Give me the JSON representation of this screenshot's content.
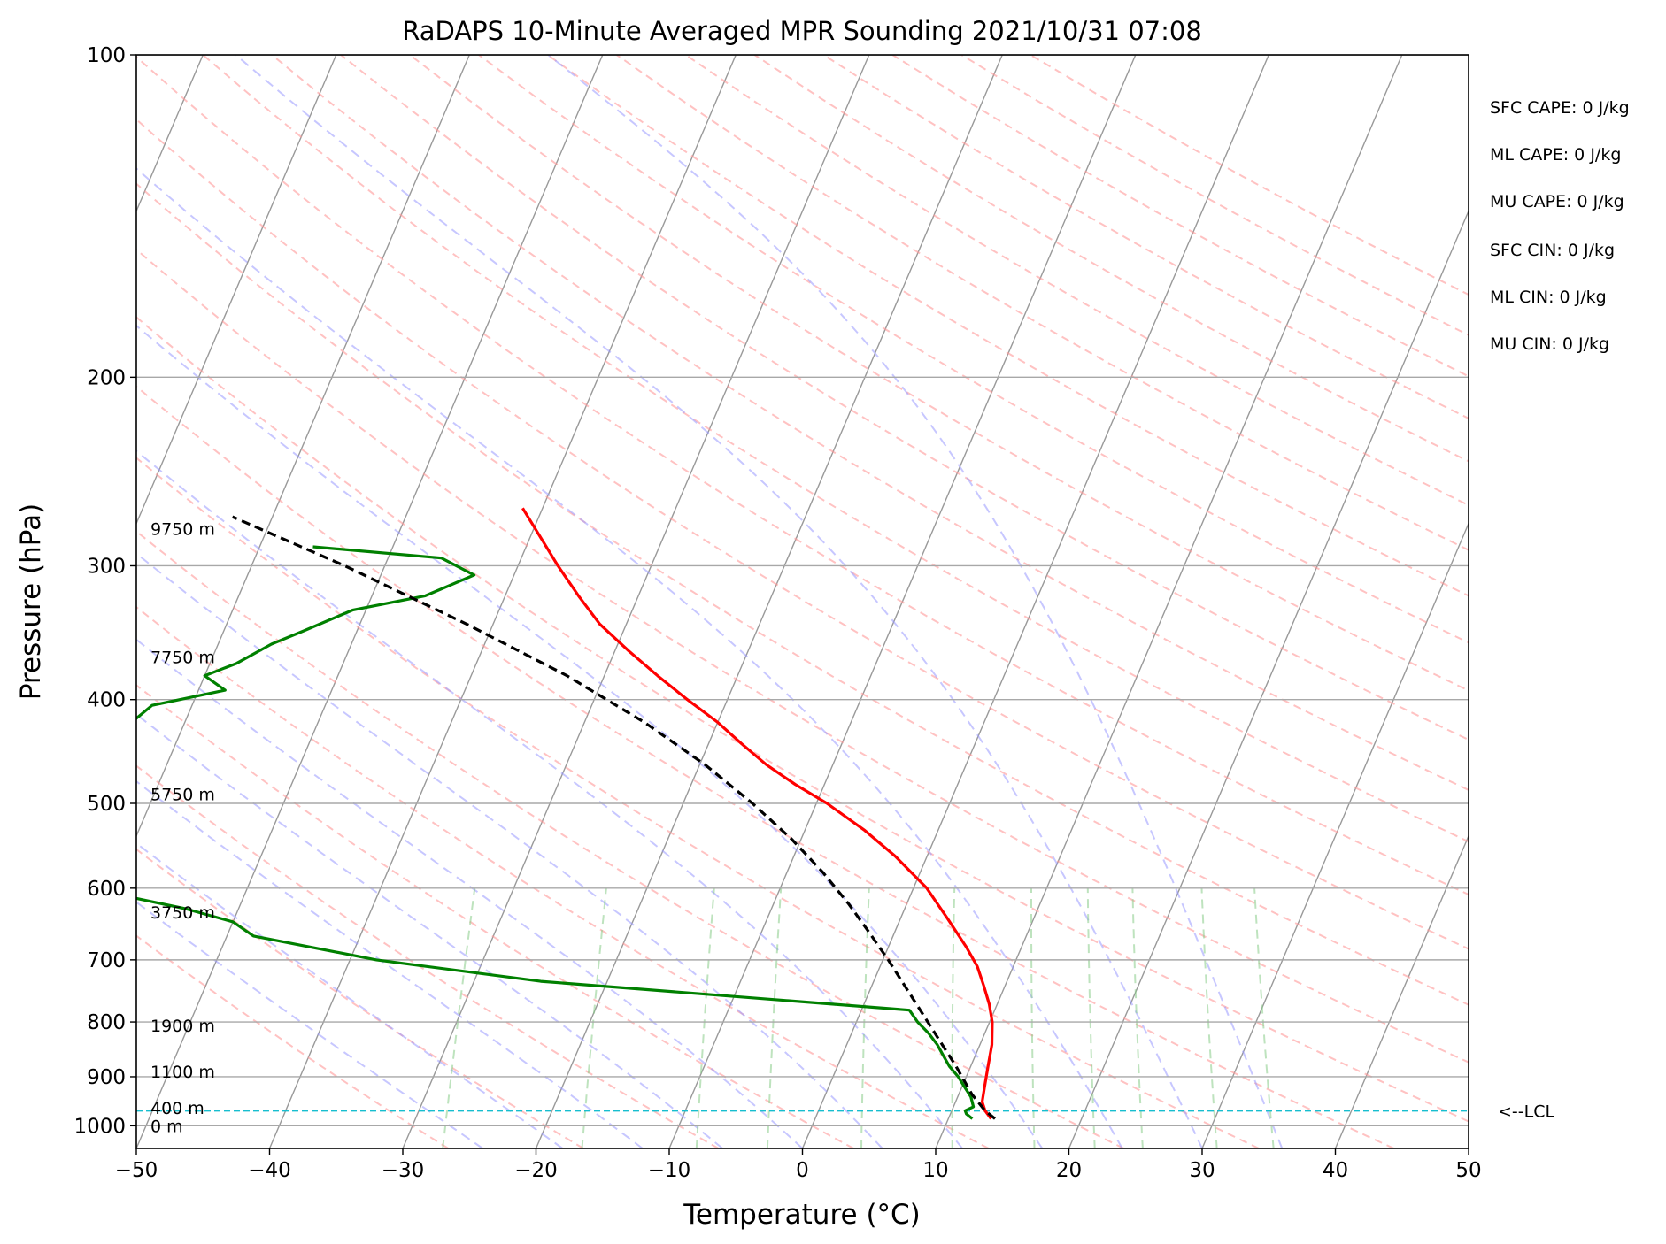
{
  "chart_data": {
    "type": "line",
    "title": "RaDAPS 10-Minute Averaged MPR Sounding 2021/10/31 07:08",
    "xlabel": "Temperature (°C)",
    "ylabel": "Pressure (hPa)",
    "xlim": [
      -50,
      50
    ],
    "ylim": [
      1050,
      100
    ],
    "y_scale": "log",
    "skew": "skew-T",
    "grid": true,
    "x_ticks": [
      "−50",
      "−40",
      "−30",
      "−20",
      "−10",
      "0",
      "10",
      "20",
      "30",
      "40",
      "50"
    ],
    "x_tick_values": [
      -50,
      -40,
      -30,
      -20,
      -10,
      0,
      10,
      20,
      30,
      40,
      50
    ],
    "y_ticks": [
      "100",
      "200",
      "300",
      "400",
      "500",
      "600",
      "700",
      "800",
      "900",
      "1000"
    ],
    "y_tick_values": [
      100,
      200,
      300,
      400,
      500,
      600,
      700,
      800,
      900,
      1000
    ],
    "series": [
      {
        "id": "temperature",
        "color": "#ff0000",
        "points": [
          [
            13.2,
            985
          ],
          [
            12.5,
            968
          ],
          [
            12.0,
            950
          ],
          [
            11.7,
            920
          ],
          [
            11.3,
            880
          ],
          [
            10.9,
            840
          ],
          [
            10.2,
            800
          ],
          [
            9.4,
            770
          ],
          [
            8.4,
            740
          ],
          [
            7.3,
            710
          ],
          [
            5.8,
            680
          ],
          [
            3.5,
            640
          ],
          [
            1.0,
            600
          ],
          [
            -2.4,
            560
          ],
          [
            -5.5,
            530
          ],
          [
            -9.2,
            500
          ],
          [
            -12.2,
            480
          ],
          [
            -15.0,
            460
          ],
          [
            -17.5,
            440
          ],
          [
            -20.0,
            420
          ],
          [
            -23.0,
            400
          ],
          [
            -26.0,
            380
          ],
          [
            -29.0,
            360
          ],
          [
            -32.0,
            340
          ],
          [
            -34.5,
            320
          ],
          [
            -37.0,
            300
          ],
          [
            -39.5,
            280
          ],
          [
            -41.5,
            265
          ]
        ]
      },
      {
        "id": "dewpoint",
        "color": "#008000",
        "points": [
          [
            11.8,
            985
          ],
          [
            11.2,
            975
          ],
          [
            11.0,
            968
          ],
          [
            11.5,
            960
          ],
          [
            11.0,
            940
          ],
          [
            10.2,
            920
          ],
          [
            9.4,
            900
          ],
          [
            8.4,
            880
          ],
          [
            7.6,
            860
          ],
          [
            6.8,
            840
          ],
          [
            5.8,
            820
          ],
          [
            4.6,
            800
          ],
          [
            3.6,
            780
          ],
          [
            -25,
            733
          ],
          [
            -38,
            700
          ],
          [
            -48,
            665
          ],
          [
            -50,
            645
          ],
          [
            -54,
            627
          ],
          [
            -62,
            600
          ],
          [
            -66,
            585
          ],
          [
            -71,
            568
          ],
          [
            -72,
            550
          ],
          [
            -71,
            530
          ],
          [
            -71,
            515
          ],
          [
            -71,
            500
          ],
          [
            -69,
            480
          ],
          [
            -67,
            465
          ],
          [
            -67,
            450
          ],
          [
            -65,
            440
          ],
          [
            -64,
            420
          ],
          [
            -63,
            405
          ],
          [
            -58,
            392
          ],
          [
            -60,
            380
          ],
          [
            -58,
            370
          ],
          [
            -56,
            355
          ],
          [
            -54,
            345
          ],
          [
            -51,
            330
          ],
          [
            -46,
            320
          ],
          [
            -43,
            306
          ],
          [
            -46,
            295
          ],
          [
            -56,
            288
          ]
        ]
      },
      {
        "id": "parcel-profile",
        "color": "#000000",
        "dashed": true,
        "points": [
          [
            13.5,
            985
          ],
          [
            12.5,
            968
          ],
          [
            11.0,
            935
          ],
          [
            8.9,
            880
          ],
          [
            6.5,
            825
          ],
          [
            3.7,
            765
          ],
          [
            0.4,
            700
          ],
          [
            -1.9,
            660
          ],
          [
            -4.4,
            620
          ],
          [
            -7.3,
            580
          ],
          [
            -10.7,
            540
          ],
          [
            -14.8,
            500
          ],
          [
            -19.6,
            460
          ],
          [
            -25.5,
            420
          ],
          [
            -32.8,
            380
          ],
          [
            -42.0,
            340
          ],
          [
            -53.0,
            300
          ],
          [
            -63.0,
            270
          ]
        ]
      }
    ],
    "height_labels": [
      {
        "text": "9750 m",
        "pressure": 277
      },
      {
        "text": "7750 m",
        "pressure": 365
      },
      {
        "text": "5750 m",
        "pressure": 490
      },
      {
        "text": "3750 m",
        "pressure": 632
      },
      {
        "text": "1900 m",
        "pressure": 806
      },
      {
        "text": "1100 m",
        "pressure": 890
      },
      {
        "text": "400 m",
        "pressure": 962
      },
      {
        "text": "0 m",
        "pressure": 1000
      }
    ],
    "lcl": {
      "label": "<--LCL",
      "pressure": 968
    },
    "indices": [
      "SFC CAPE: 0 J/kg",
      "ML CAPE: 0 J/kg",
      "MU CAPE: 0 J/kg",
      "SFC CIN: 0 J/kg",
      "ML CIN: 0 J/kg",
      "MU CIN: 0 J/kg"
    ],
    "colors": {
      "dry_adiabats": "#ff9999",
      "moist_adiabats": "#9999ff",
      "mixing_ratio": "#88cc88",
      "isotherms": "#808080",
      "lcl_line": "#17becf"
    }
  }
}
